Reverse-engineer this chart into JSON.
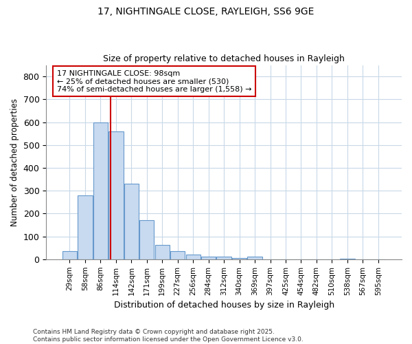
{
  "title1": "17, NIGHTINGALE CLOSE, RAYLEIGH, SS6 9GE",
  "title2": "Size of property relative to detached houses in Rayleigh",
  "xlabel": "Distribution of detached houses by size in Rayleigh",
  "ylabel": "Number of detached properties",
  "categories": [
    "29sqm",
    "58sqm",
    "86sqm",
    "114sqm",
    "142sqm",
    "171sqm",
    "199sqm",
    "227sqm",
    "256sqm",
    "284sqm",
    "312sqm",
    "340sqm",
    "369sqm",
    "397sqm",
    "425sqm",
    "454sqm",
    "482sqm",
    "510sqm",
    "538sqm",
    "567sqm",
    "595sqm"
  ],
  "values": [
    35,
    280,
    600,
    560,
    330,
    170,
    62,
    35,
    22,
    10,
    10,
    5,
    10,
    0,
    0,
    0,
    0,
    0,
    3,
    0,
    0
  ],
  "bar_color": "#c8daf0",
  "bar_edge_color": "#6699cc",
  "vline_x": 2.67,
  "vline_color": "#cc0000",
  "annotation_text": "17 NIGHTINGALE CLOSE: 98sqm\n← 25% of detached houses are smaller (530)\n74% of semi-detached houses are larger (1,558) →",
  "annotation_box_color": "#ffffff",
  "annotation_box_edge": "#cc0000",
  "ylim": [
    0,
    850
  ],
  "yticks": [
    0,
    100,
    200,
    300,
    400,
    500,
    600,
    700,
    800
  ],
  "grid_color": "#c8d8e8",
  "bg_color": "#ffffff",
  "plot_bg_color": "#ffffff",
  "footnote": "Contains HM Land Registry data © Crown copyright and database right 2025.\nContains public sector information licensed under the Open Government Licence v3.0."
}
